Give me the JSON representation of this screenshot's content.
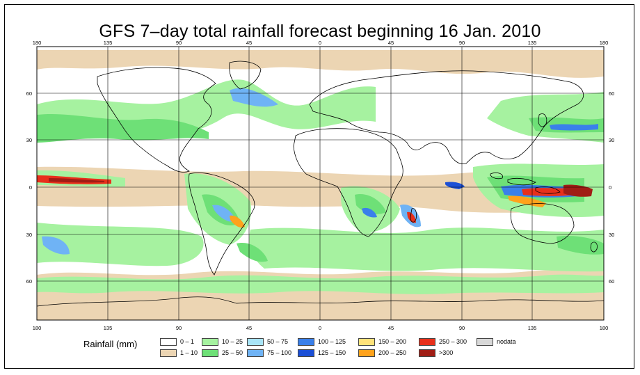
{
  "title": "GFS 7–day total rainfall forecast beginning 16 Jan. 2010",
  "longitude_ticks": [
    "180",
    "135",
    "90",
    "45",
    "0",
    "45",
    "90",
    "135",
    "180"
  ],
  "latitude_ticks": [
    "60",
    "30",
    "0",
    "30",
    "60"
  ],
  "legend": {
    "label": "Rainfall (mm)",
    "items": [
      {
        "range": "0 – 1",
        "color": "#ffffff"
      },
      {
        "range": "1 – 10",
        "color": "#ecd5b3"
      },
      {
        "range": "10 – 25",
        "color": "#a6f2a0"
      },
      {
        "range": "25 – 50",
        "color": "#6ee077"
      },
      {
        "range": "50 – 75",
        "color": "#a8e4f7"
      },
      {
        "range": "75 – 100",
        "color": "#6fb3f5"
      },
      {
        "range": "100 – 125",
        "color": "#3a80ea"
      },
      {
        "range": "125 – 150",
        "color": "#1b4fd6"
      },
      {
        "range": "150 – 200",
        "color": "#ffe27a"
      },
      {
        "range": "200 – 250",
        "color": "#ffa21c"
      },
      {
        "range": "250 – 300",
        "color": "#e8301b"
      },
      {
        "range": ">300",
        "color": "#a01d15"
      },
      {
        "range": "nodata",
        "color": "#d8d8d8"
      }
    ]
  }
}
